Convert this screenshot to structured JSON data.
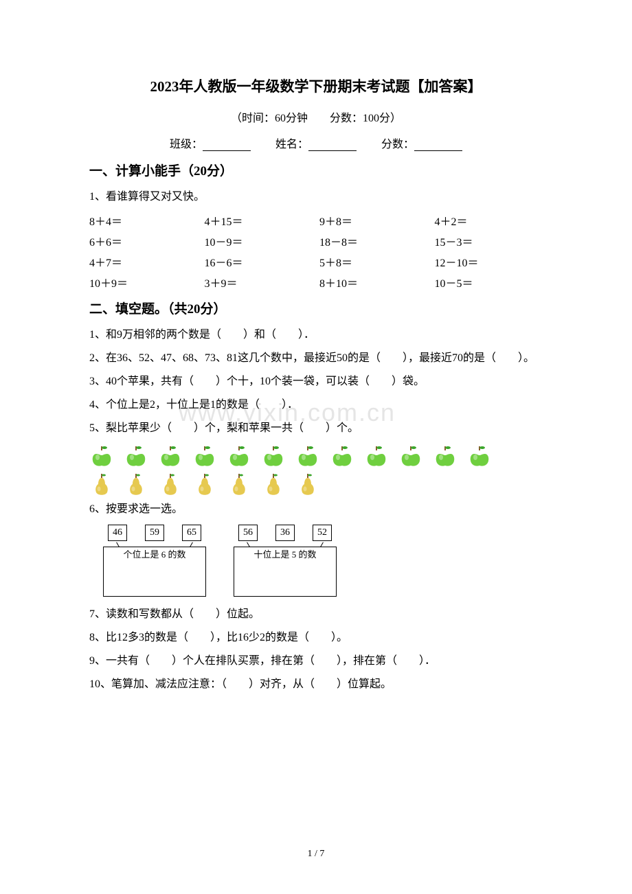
{
  "title": "2023年人教版一年级数学下册期末考试题【加答案】",
  "subtitle": "（时间：60分钟　　分数：100分）",
  "info": {
    "class_label": "班级：",
    "name_label": "姓名：",
    "score_label": "分数："
  },
  "section1": {
    "heading": "一、计算小能手（20分）",
    "q1": "1、看谁算得又对又快。",
    "grid": [
      [
        "8＋4＝",
        "4＋15＝",
        "9＋8＝",
        "4＋2＝"
      ],
      [
        "6＋6＝",
        "10－9＝",
        "18－8＝",
        "15－3＝"
      ],
      [
        "4＋7＝",
        "16－6＝",
        "5＋8＝",
        "12－10＝"
      ],
      [
        "10＋9＝",
        "3＋9＝",
        "8＋10＝",
        "10－5＝"
      ]
    ]
  },
  "section2": {
    "heading": "二、填空题。（共20分）",
    "q1": "1、和9万相邻的两个数是（　　）和（　　）．",
    "q2": "2、在36、52、47、68、73、81这几个数中，最接近50的是（　　），最接近70的是（　　）。",
    "q3": "3、40个苹果，共有（　　）个十，10个装一袋，可以装（　　）袋。",
    "q4": "4、个位上是2，十位上是1的数是（　　）．",
    "q5": "5、梨比苹果少（　　）个，梨和苹果一共（　　）个。",
    "apples_count": 12,
    "pears_count": 7,
    "q6": "6、按要求选一选。",
    "q6_groups": [
      {
        "nums": [
          "46",
          "59",
          "65"
        ],
        "label": "个位上是 6 的数"
      },
      {
        "nums": [
          "56",
          "36",
          "52"
        ],
        "label": "十位上是 5 的数"
      }
    ],
    "q7": "7、读数和写数都从（　　）位起。",
    "q8": "8、比12多3的数是（　　），比16少2的数是（　　）。",
    "q9": "9、一共有（　　）个人在排队买票，排在第（　　），排在第（　　）．",
    "q10": "10、笔算加、减法应注意：（　　）对齐，从（　　）位算起。"
  },
  "watermark": "www.yixin.com.cn",
  "page_num": "1 / 7",
  "colors": {
    "apple_fill": "#6fcf3f",
    "apple_leaf": "#3ba52a",
    "apple_stem": "#8a5a2a",
    "pear_fill": "#e6c94f",
    "pear_stem": "#8a5a2a",
    "text": "#000000",
    "bg": "#ffffff"
  }
}
